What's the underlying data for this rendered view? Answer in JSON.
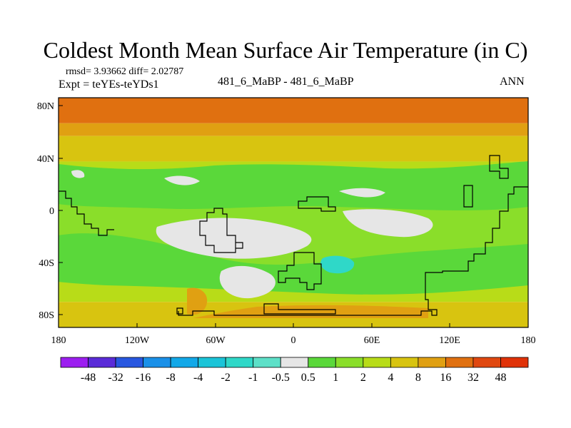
{
  "header": {
    "title": "Coldest Month Mean Surface Air Temperature (in C)",
    "stats": "rmsd= 3.93662 diff= 2.02787",
    "expt": "Expt = teYEs-teYDs1",
    "case": "481_6_MaBP - 481_6_MaBP",
    "season": "ANN"
  },
  "chart_data": {
    "type": "heatmap",
    "title": "Coldest Month Mean Surface Air Temperature (in C)",
    "subtitle": "481_6_MaBP - 481_6_MaBP",
    "xlabel": "",
    "ylabel": "",
    "x_ticks": [
      "180",
      "120W",
      "60W",
      "0",
      "60E",
      "120E",
      "180"
    ],
    "y_ticks": [
      "80N",
      "40N",
      "0",
      "40S",
      "80S"
    ],
    "xlim": [
      -180,
      180
    ],
    "ylim": [
      -90,
      90
    ],
    "colorbar": {
      "levels": [
        "-48",
        "-32",
        "-16",
        "-8",
        "-4",
        "-2",
        "-1",
        "-0.5",
        "0.5",
        "1",
        "2",
        "4",
        "8",
        "16",
        "32",
        "48"
      ],
      "colors": [
        "#9c1ef0",
        "#5a2bd8",
        "#2857e0",
        "#1a90e8",
        "#12a8e8",
        "#1bc4d8",
        "#2fd8c8",
        "#5de0c8",
        "#e6e6e6",
        "#5ad83a",
        "#8ade2a",
        "#b8dc18",
        "#d8c410",
        "#e0a012",
        "#e07010",
        "#e04810",
        "#e03208"
      ]
    },
    "bands": [
      {
        "lat_min": 70,
        "lat_max": 90,
        "bin": "16 to 32"
      },
      {
        "lat_min": 60,
        "lat_max": 70,
        "bin": "8 to 16"
      },
      {
        "lat_min": 40,
        "lat_max": 60,
        "bin": "4 to 8"
      },
      {
        "lat_min": 20,
        "lat_max": 40,
        "bin": "2 to 4"
      },
      {
        "lat_min": -50,
        "lat_max": 20,
        "bin": "1 to 2"
      },
      {
        "lat_min": -70,
        "lat_max": -50,
        "bin": "2 to 4"
      },
      {
        "lat_min": -90,
        "lat_max": -70,
        "bin": "4 to 8"
      }
    ],
    "features": [
      {
        "name": "near-zero region",
        "lon": -40,
        "lat": -30,
        "bin": "-0.5 to 0.5"
      },
      {
        "name": "negative anomaly",
        "lon": 35,
        "lat": -40,
        "bin": "-2 to -1"
      },
      {
        "name": "warm anomaly",
        "lon": -75,
        "lat": -75,
        "bin": "8 to 16"
      }
    ]
  }
}
